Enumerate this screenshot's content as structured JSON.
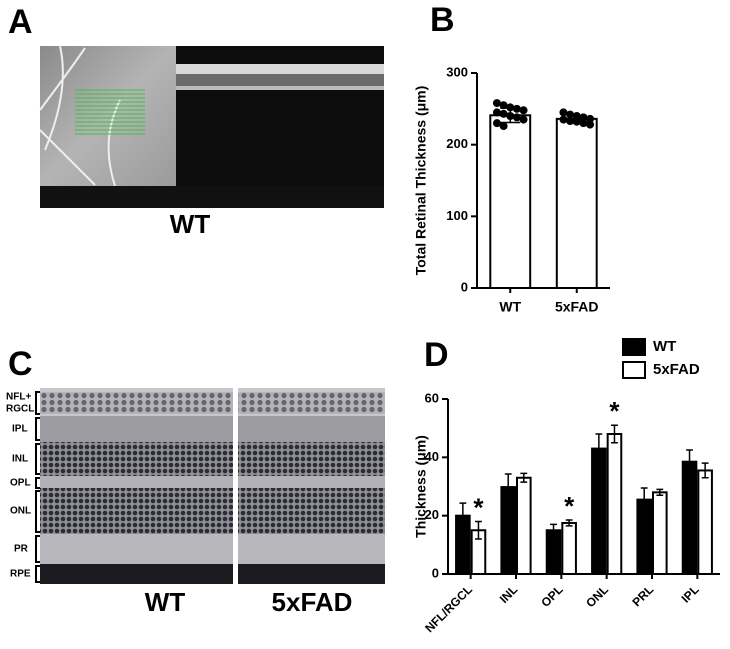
{
  "panels": {
    "A": {
      "label": "A",
      "caption": "WT"
    },
    "C": {
      "label": "C",
      "layers": [
        [
          "NFL+",
          "RGCL"
        ],
        [
          "IPL"
        ],
        [
          "INL"
        ],
        [
          "OPL"
        ],
        [
          "ONL"
        ],
        [
          "PR"
        ],
        [
          "RPE"
        ]
      ],
      "captions": [
        "WT",
        "5xFAD"
      ]
    }
  },
  "chart_data": [
    {
      "type": "bar",
      "label": "B",
      "y_label": "Total Retinal Thickness (μm)",
      "categories": [
        "WT",
        "5xFAD"
      ],
      "values": [
        241,
        236
      ],
      "errors": [
        10,
        5
      ],
      "points": [
        [
          258,
          255,
          252,
          250,
          248,
          245,
          243,
          240,
          238,
          235,
          230,
          226
        ],
        [
          245,
          242,
          240,
          238,
          236,
          235,
          233,
          232,
          230,
          228
        ]
      ],
      "color": "#ffffff",
      "edge_color": "#000000",
      "ylim": [
        0,
        300
      ],
      "yticks": [
        0,
        100,
        200,
        300
      ]
    },
    {
      "type": "bar",
      "label": "D",
      "y_label": "Thickness (μm)",
      "categories": [
        "NFL/RGCL",
        "INL",
        "OPL",
        "ONL",
        "PRL",
        "IPL"
      ],
      "series": [
        {
          "name": "WT",
          "color": "#000000",
          "values": [
            20,
            29.8,
            15,
            43,
            25.5,
            38.5
          ],
          "errors": [
            4.3,
            4.5,
            2,
            5,
            4,
            4
          ],
          "markers": [
            null,
            null,
            null,
            null,
            null,
            null
          ]
        },
        {
          "name": "5xFAD",
          "color": "#ffffff",
          "values": [
            15,
            33,
            17.5,
            48,
            28,
            35.5
          ],
          "errors": [
            3,
            1.5,
            1,
            3,
            1,
            2.5
          ],
          "markers": [
            "*",
            null,
            "*",
            "*",
            null,
            null
          ]
        }
      ],
      "edge_color": "#000000",
      "ylim": [
        0,
        60
      ],
      "yticks": [
        0,
        20,
        40,
        60
      ],
      "legend": "top-right"
    }
  ]
}
